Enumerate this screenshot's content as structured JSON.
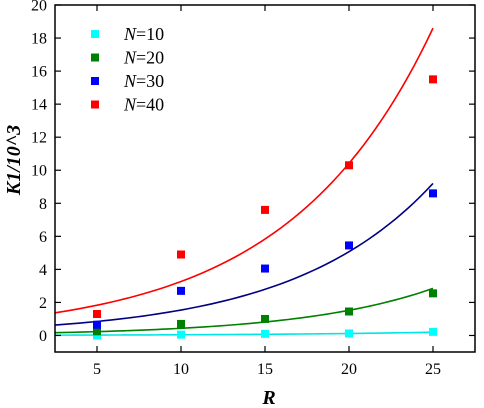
{
  "chart_data": {
    "type": "scatter",
    "xlabel": "R",
    "ylabel": "K1/10^3",
    "xlim": [
      2.5,
      27.5
    ],
    "ylim": [
      -1,
      20
    ],
    "xticks": [
      5,
      10,
      15,
      20,
      25
    ],
    "yticks": [
      0,
      2,
      4,
      6,
      8,
      10,
      12,
      14,
      16,
      18,
      20
    ],
    "grid": false,
    "legend_position": "top-left",
    "series": [
      {
        "name": "N=10",
        "var": "N",
        "num": "=10",
        "color": "#00ffff",
        "x": [
          5,
          10,
          15,
          20,
          25
        ],
        "values": [
          0.0,
          0.05,
          0.1,
          0.12,
          0.22
        ],
        "fit": [
          0.02,
          0.2
        ]
      },
      {
        "name": "N=20",
        "var": "N",
        "num": "=20",
        "color": "#008000",
        "x": [
          5,
          10,
          15,
          20,
          25
        ],
        "values": [
          0.25,
          0.7,
          1.0,
          1.45,
          2.55
        ],
        "fit": [
          0.17,
          2.85
        ]
      },
      {
        "name": "N=30",
        "var": "N",
        "num": "=30",
        "color": "#0000ff",
        "x": [
          5,
          10,
          15,
          20,
          25
        ],
        "values": [
          0.65,
          2.7,
          4.05,
          5.45,
          8.6
        ],
        "fit": [
          0.63,
          9.2
        ]
      },
      {
        "name": "N=40",
        "var": "N",
        "num": "=40",
        "color": "#ff0000",
        "x": [
          5,
          10,
          15,
          20,
          25
        ],
        "values": [
          1.3,
          4.9,
          7.6,
          10.3,
          15.5
        ],
        "fit": [
          1.37,
          18.6
        ]
      }
    ],
    "fit_colors": [
      "#00e5e5",
      "#008000",
      "#000080",
      "#ff0000"
    ]
  }
}
